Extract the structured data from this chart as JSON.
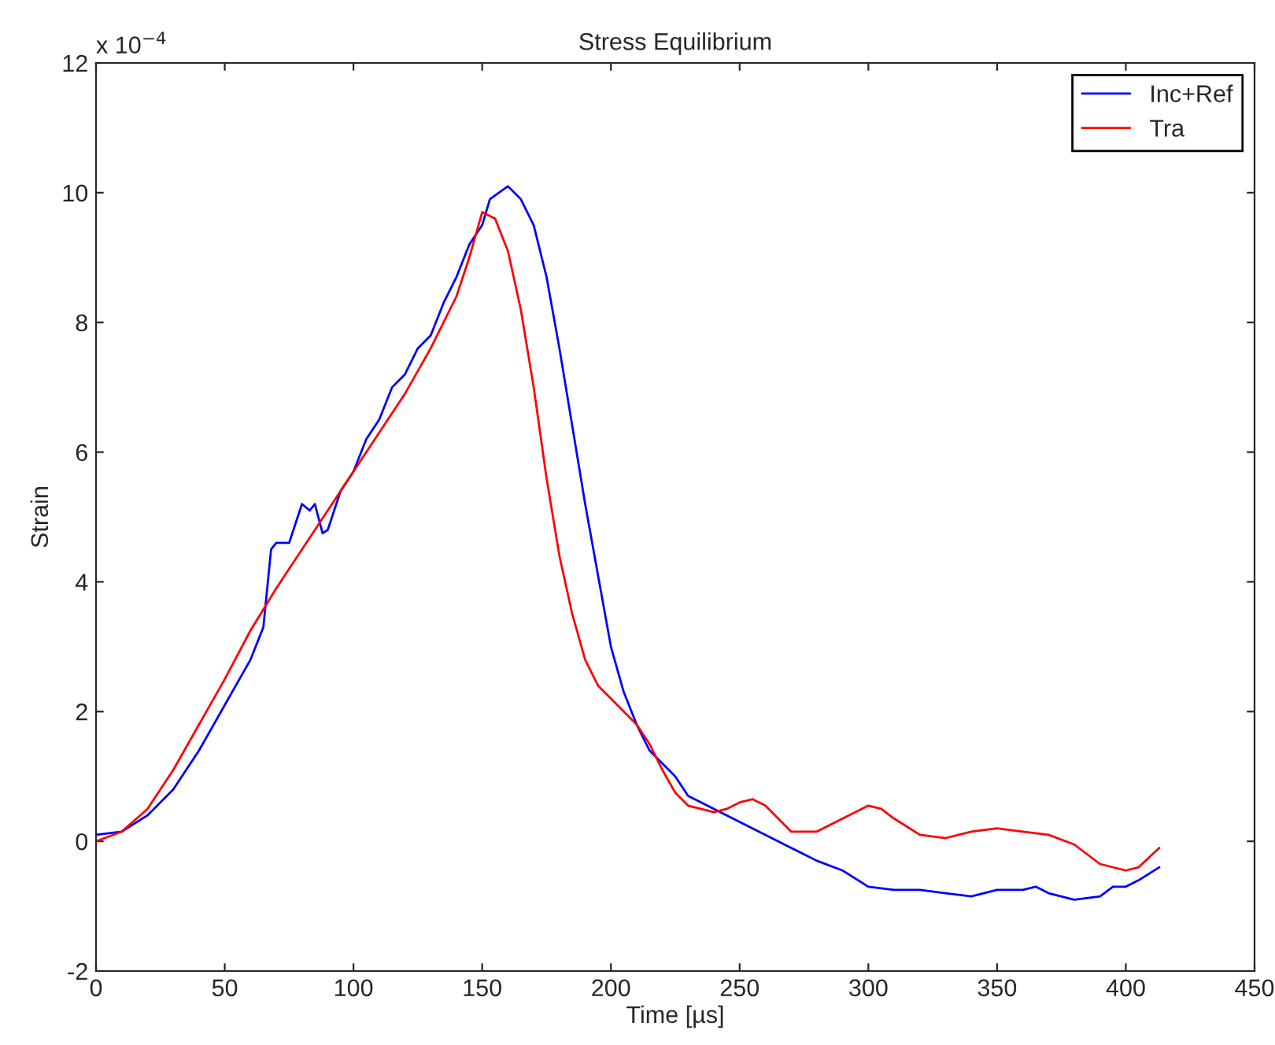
{
  "chart_data": {
    "type": "line",
    "title": "Stress Equilibrium",
    "xlabel": "Time [µs]",
    "ylabel": "Strain",
    "annotations": [
      "x 10$^{−4}$"
    ],
    "xlim": [
      0,
      450
    ],
    "xticks": [
      0,
      50,
      100,
      150,
      200,
      250,
      300,
      350,
      400,
      450
    ],
    "ylim": [
      -2,
      12
    ],
    "yticks": [
      -2,
      0,
      2,
      4,
      6,
      8,
      10,
      12
    ],
    "grid": false,
    "legend": "top right",
    "line_style": "solid",
    "marker": "none",
    "series": [
      {
        "name": "Inc+Ref",
        "color": "#0000ff",
        "x": [
          0,
          10,
          20,
          30,
          40,
          50,
          60,
          65,
          68,
          70,
          75,
          80,
          83,
          85,
          88,
          90,
          95,
          100,
          105,
          110,
          115,
          120,
          125,
          130,
          135,
          140,
          145,
          150,
          153,
          160,
          165,
          170,
          175,
          180,
          185,
          190,
          195,
          200,
          205,
          210,
          215,
          220,
          225,
          230,
          240,
          250,
          260,
          270,
          280,
          290,
          300,
          310,
          320,
          330,
          340,
          350,
          360,
          365,
          370,
          380,
          390,
          395,
          400,
          405,
          413
        ],
        "values": [
          0.1,
          0.15,
          0.4,
          0.8,
          1.4,
          2.1,
          2.8,
          3.3,
          4.5,
          4.6,
          4.6,
          5.2,
          5.1,
          5.2,
          4.75,
          4.8,
          5.4,
          5.7,
          6.2,
          6.5,
          7.0,
          7.2,
          7.6,
          7.8,
          8.3,
          8.7,
          9.2,
          9.5,
          9.9,
          10.1,
          9.9,
          9.5,
          8.7,
          7.6,
          6.4,
          5.2,
          4.1,
          3.0,
          2.3,
          1.8,
          1.4,
          1.2,
          1.0,
          0.7,
          0.5,
          0.3,
          0.1,
          -0.1,
          -0.3,
          -0.45,
          -0.7,
          -0.75,
          -0.75,
          -0.8,
          -0.85,
          -0.75,
          -0.75,
          -0.7,
          -0.8,
          -0.9,
          -0.85,
          -0.7,
          -0.7,
          -0.6,
          -0.4
        ]
      },
      {
        "name": "Tra",
        "color": "#ff0000",
        "x": [
          0,
          10,
          20,
          30,
          40,
          50,
          60,
          70,
          80,
          90,
          100,
          110,
          120,
          130,
          140,
          145,
          150,
          155,
          160,
          165,
          170,
          175,
          180,
          185,
          190,
          195,
          200,
          205,
          210,
          215,
          220,
          225,
          230,
          240,
          245,
          250,
          255,
          260,
          265,
          270,
          280,
          290,
          300,
          305,
          310,
          320,
          330,
          340,
          350,
          360,
          370,
          380,
          390,
          400,
          405,
          413
        ],
        "values": [
          0,
          0.15,
          0.5,
          1.1,
          1.8,
          2.5,
          3.25,
          3.9,
          4.5,
          5.1,
          5.7,
          6.3,
          6.9,
          7.6,
          8.4,
          9.0,
          9.7,
          9.6,
          9.1,
          8.2,
          7.0,
          5.6,
          4.4,
          3.5,
          2.8,
          2.4,
          2.2,
          2.0,
          1.8,
          1.5,
          1.1,
          0.75,
          0.55,
          0.45,
          0.5,
          0.6,
          0.65,
          0.55,
          0.35,
          0.15,
          0.15,
          0.35,
          0.55,
          0.5,
          0.35,
          0.1,
          0.05,
          0.15,
          0.2,
          0.15,
          0.1,
          -0.05,
          -0.35,
          -0.45,
          -0.4,
          -0.1
        ]
      }
    ]
  }
}
